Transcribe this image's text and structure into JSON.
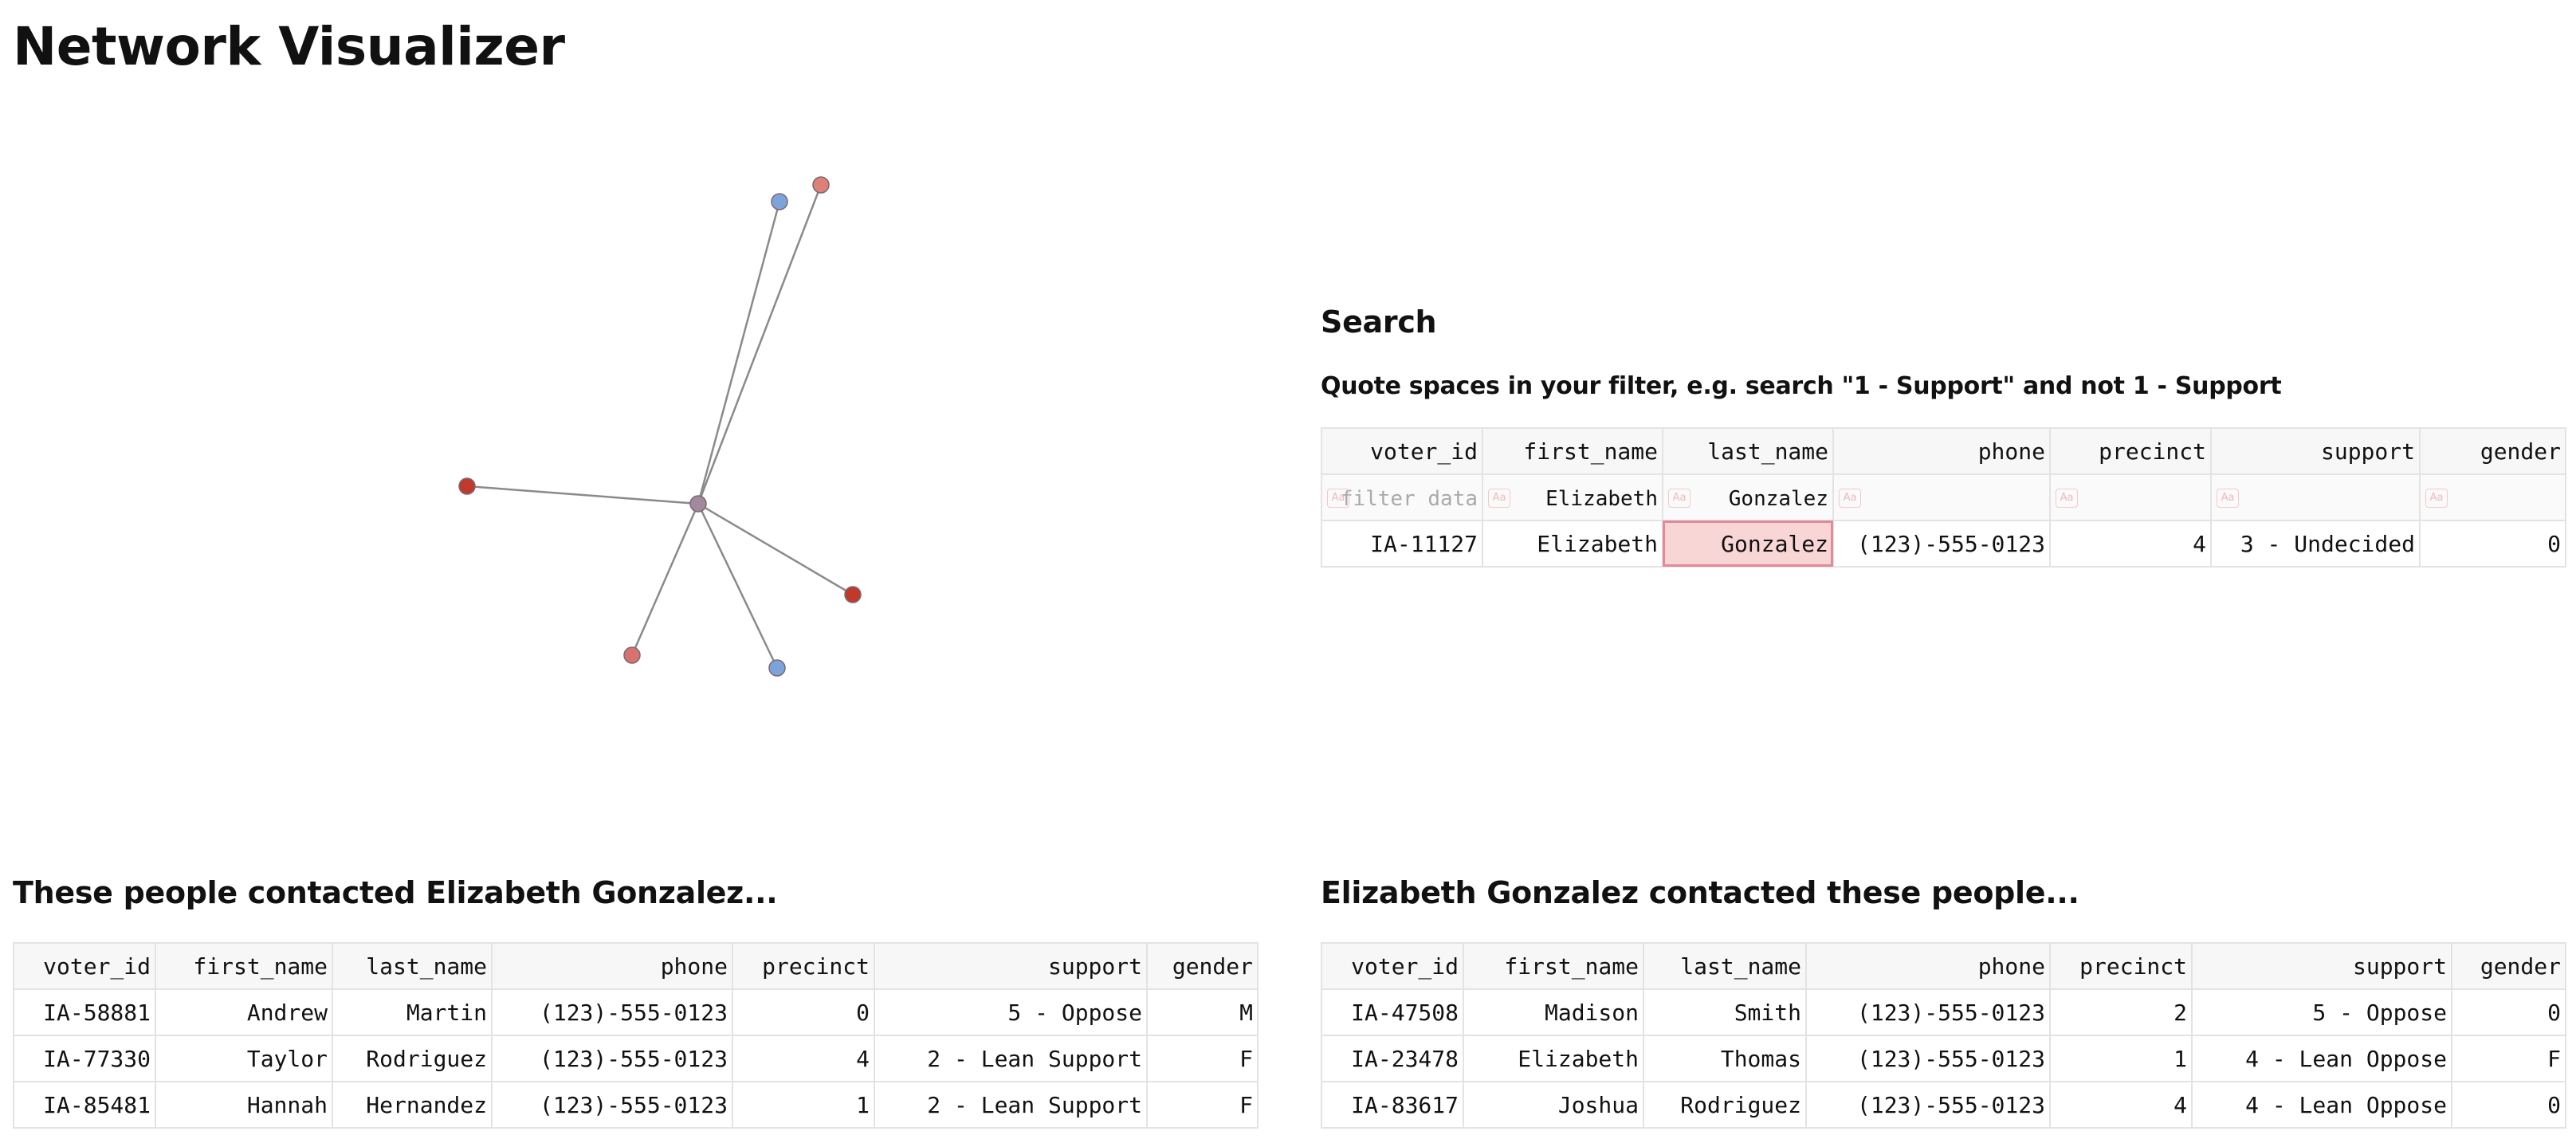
{
  "page": {
    "title": "Network Visualizer"
  },
  "graph": {
    "edge_color": "#8a8a8a",
    "center_color": "#a08a9c",
    "colors": {
      "blue": "#7da3dc",
      "salmon": "#de8078",
      "red": "#c0392b",
      "pink": "#d9716e"
    }
  },
  "search": {
    "title": "Search",
    "hint": "Quote spaces in your filter, e.g. search \"1 - Support\" and not 1 - Support",
    "columns": [
      "voter_id",
      "first_name",
      "last_name",
      "phone",
      "precinct",
      "support",
      "gender"
    ],
    "filter_badge": "Aa",
    "filters": {
      "voter_id_placeholder": "filter data",
      "first_name": "Elizabeth",
      "last_name": "Gonzalez"
    },
    "rows": [
      [
        "IA-11127",
        "Elizabeth",
        "Gonzalez",
        "(123)-555-0123",
        "4",
        "3 - Undecided",
        "0"
      ]
    ]
  },
  "incoming": {
    "title": "These people contacted Elizabeth Gonzalez...",
    "columns": [
      "voter_id",
      "first_name",
      "last_name",
      "phone",
      "precinct",
      "support",
      "gender"
    ],
    "rows": [
      [
        "IA-58881",
        "Andrew",
        "Martin",
        "(123)-555-0123",
        "0",
        "5 - Oppose",
        "M"
      ],
      [
        "IA-77330",
        "Taylor",
        "Rodriguez",
        "(123)-555-0123",
        "4",
        "2 - Lean Support",
        "F"
      ],
      [
        "IA-85481",
        "Hannah",
        "Hernandez",
        "(123)-555-0123",
        "1",
        "2 - Lean Support",
        "F"
      ]
    ]
  },
  "outgoing": {
    "title": "Elizabeth Gonzalez contacted these people...",
    "columns": [
      "voter_id",
      "first_name",
      "last_name",
      "phone",
      "precinct",
      "support",
      "gender"
    ],
    "rows": [
      [
        "IA-47508",
        "Madison",
        "Smith",
        "(123)-555-0123",
        "2",
        "5 - Oppose",
        "0"
      ],
      [
        "IA-23478",
        "Elizabeth",
        "Thomas",
        "(123)-555-0123",
        "1",
        "4 - Lean Oppose",
        "F"
      ],
      [
        "IA-83617",
        "Joshua",
        "Rodriguez",
        "(123)-555-0123",
        "4",
        "4 - Lean Oppose",
        "0"
      ]
    ]
  }
}
